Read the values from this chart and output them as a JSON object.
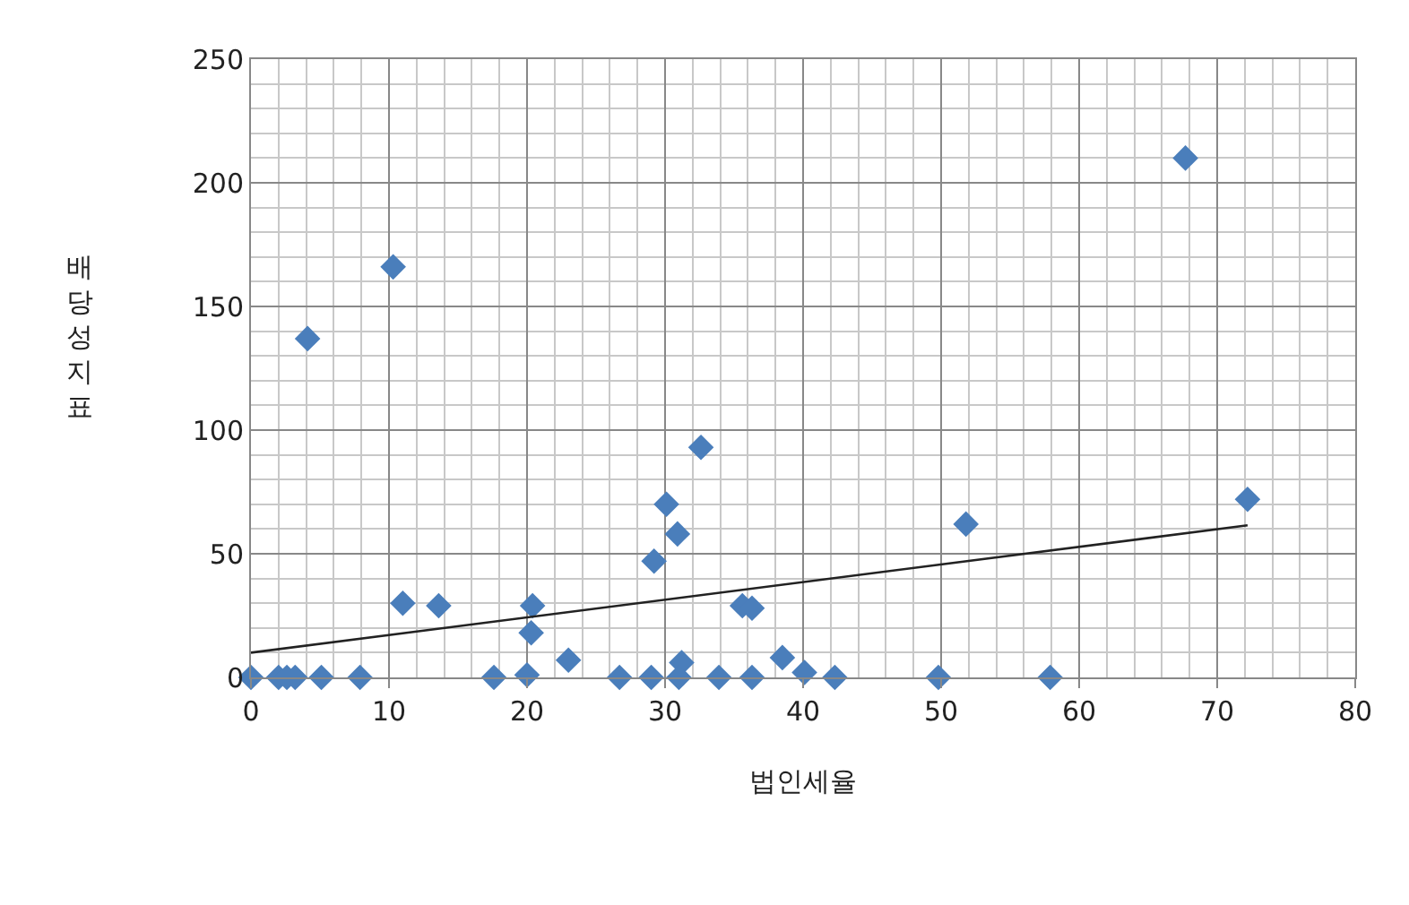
{
  "chart_data": {
    "type": "scatter",
    "xlabel": "법인세율",
    "ylabel": "배당성지표",
    "xlim": [
      0,
      80
    ],
    "ylim": [
      0,
      250
    ],
    "xticks": [
      0,
      10,
      20,
      30,
      40,
      50,
      60,
      70,
      80
    ],
    "yticks": [
      0,
      50,
      100,
      150,
      200,
      250
    ],
    "grid": true,
    "series": [
      {
        "marker": "diamond",
        "color": "#4a7ebb",
        "x": [
          0,
          2,
          2.6,
          3.2,
          5.1,
          7.9,
          4.1,
          10.3,
          11,
          13.6,
          17.6,
          20,
          20.4,
          20.3,
          23,
          26.7,
          29,
          29.2,
          30.1,
          30.9,
          32.6,
          31.2,
          31,
          33.9,
          35.6,
          36.3,
          36.3,
          38.5,
          40.1,
          42.3,
          49.8,
          57.9,
          51.8,
          67.7,
          72.2
        ],
        "values": [
          0,
          0,
          0,
          0,
          0,
          0,
          137,
          166,
          30,
          29,
          0,
          1,
          29,
          18,
          7,
          0,
          0,
          47,
          70,
          58,
          93,
          6,
          0,
          0,
          29,
          28,
          0,
          8,
          2,
          0,
          0,
          0,
          62,
          210,
          72
        ]
      },
      {
        "type": "line",
        "marker": "none",
        "color": "#222222",
        "x": [
          0,
          72.2
        ],
        "values": [
          10,
          61.5
        ]
      }
    ]
  }
}
